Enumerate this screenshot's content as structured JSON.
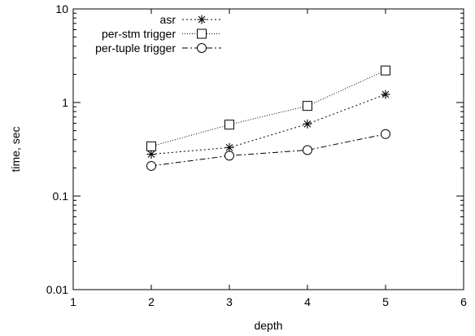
{
  "chart_data": {
    "type": "line",
    "title": "",
    "xlabel": "depth",
    "ylabel": "time, sec",
    "x_scale": "linear",
    "y_scale": "log",
    "xlim": [
      1,
      6
    ],
    "ylim": [
      0.01,
      10
    ],
    "x_ticks": [
      1,
      2,
      3,
      4,
      5,
      6
    ],
    "x_tick_labels": [
      "1",
      "2",
      "3",
      "4",
      "5",
      "6"
    ],
    "y_ticks": [
      0.01,
      0.1,
      1,
      10
    ],
    "y_tick_labels": [
      "0.01",
      "0.1",
      "1",
      "10"
    ],
    "grid": false,
    "legend_position": "top-left",
    "x": [
      2,
      3,
      4,
      5
    ],
    "series": [
      {
        "name": "asr",
        "marker": "asterisk",
        "line_style": "dotted",
        "values": [
          0.28,
          0.33,
          0.59,
          1.22
        ]
      },
      {
        "name": "per-stm trigger",
        "marker": "square",
        "line_style": "fine-dotted",
        "values": [
          0.34,
          0.58,
          0.92,
          2.2
        ]
      },
      {
        "name": "per-tuple trigger",
        "marker": "circle",
        "line_style": "dash-dot",
        "values": [
          0.21,
          0.27,
          0.31,
          0.46
        ]
      }
    ]
  }
}
